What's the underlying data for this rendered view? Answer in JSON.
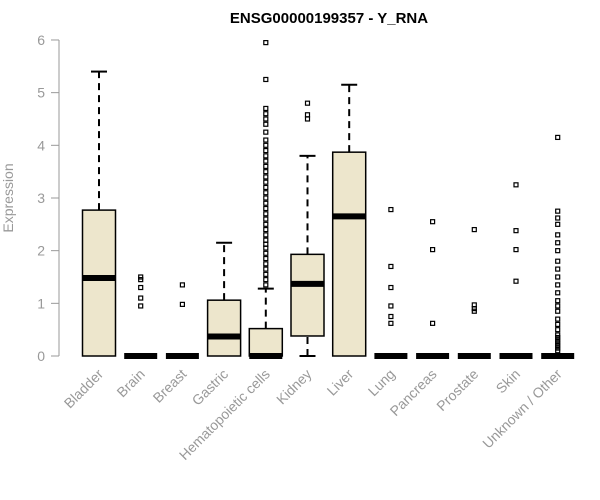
{
  "chart_data": {
    "type": "boxplot",
    "title": "ENSG00000199357 - Y_RNA",
    "xlabel": "",
    "ylabel": "Expression",
    "ylim": [
      0,
      6
    ],
    "yticks": [
      0,
      1,
      2,
      3,
      4,
      5,
      6
    ],
    "box_fill": "#ede6cc",
    "categories": [
      "Bladder",
      "Brain",
      "Breast",
      "Gastric",
      "Hematopoietic cells",
      "Kidney",
      "Liver",
      "Lung",
      "Pancreas",
      "Prostate",
      "Skin",
      "Unknown / Other"
    ],
    "boxes": [
      {
        "min": 0,
        "q1": 0,
        "median": 1.48,
        "q3": 2.77,
        "max": 5.4,
        "outliers": []
      },
      {
        "min": 0,
        "q1": 0,
        "median": 0,
        "q3": 0,
        "max": 0,
        "outliers": [
          0.95,
          1.1,
          1.3,
          1.45,
          1.5
        ]
      },
      {
        "min": 0,
        "q1": 0,
        "median": 0,
        "q3": 0,
        "max": 0,
        "outliers": [
          0.98,
          1.35
        ]
      },
      {
        "min": 0,
        "q1": 0,
        "median": 0.37,
        "q3": 1.06,
        "max": 2.15,
        "outliers": []
      },
      {
        "min": 0,
        "q1": 0,
        "median": 0,
        "q3": 0.52,
        "max": 1.28,
        "outliers": [
          1.35,
          1.45,
          1.55,
          1.65,
          1.75,
          1.85,
          1.95,
          2.05,
          2.12,
          2.2,
          2.3,
          2.4,
          2.5,
          2.6,
          2.7,
          2.8,
          2.9,
          3.0,
          3.1,
          3.2,
          3.3,
          3.4,
          3.5,
          3.6,
          3.7,
          3.8,
          3.9,
          4.0,
          4.1,
          4.25,
          4.4,
          4.5,
          4.6,
          4.7,
          5.25,
          5.95
        ]
      },
      {
        "min": 0,
        "q1": 0.38,
        "median": 1.37,
        "q3": 1.93,
        "max": 3.8,
        "outliers": [
          4.5,
          4.58,
          4.8
        ]
      },
      {
        "min": 0,
        "q1": 0,
        "median": 2.65,
        "q3": 3.87,
        "max": 5.15,
        "outliers": []
      },
      {
        "min": 0,
        "q1": 0,
        "median": 0,
        "q3": 0,
        "max": 0,
        "outliers": [
          0.62,
          0.75,
          0.95,
          1.3,
          1.7,
          2.78
        ]
      },
      {
        "min": 0,
        "q1": 0,
        "median": 0,
        "q3": 0,
        "max": 0,
        "outliers": [
          0.62,
          2.02,
          2.55
        ]
      },
      {
        "min": 0,
        "q1": 0,
        "median": 0,
        "q3": 0,
        "max": 0,
        "outliers": [
          0.85,
          0.9,
          0.97,
          2.4
        ]
      },
      {
        "min": 0,
        "q1": 0,
        "median": 0,
        "q3": 0,
        "max": 0,
        "outliers": [
          1.42,
          2.02,
          2.38,
          3.25
        ]
      },
      {
        "min": 0,
        "q1": 0,
        "median": 0,
        "q3": 0,
        "max": 0,
        "outliers": [
          0.1,
          0.15,
          0.2,
          0.25,
          0.3,
          0.35,
          0.4,
          0.5,
          0.6,
          0.7,
          0.85,
          0.95,
          1.05,
          1.2,
          1.35,
          1.5,
          1.65,
          1.8,
          2.0,
          2.15,
          2.3,
          2.5,
          2.62,
          2.75,
          4.15
        ]
      }
    ]
  }
}
